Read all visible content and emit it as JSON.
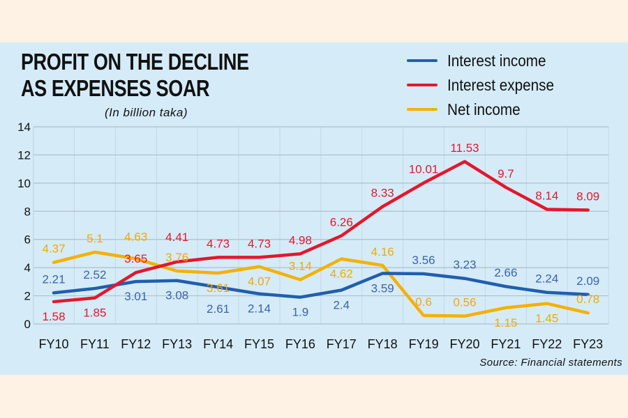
{
  "chart_data": {
    "type": "line",
    "title": "PROFIT ON THE DECLINE\nAS EXPENSES SOAR",
    "subtitle": "(In billion taka)",
    "source": "Source: Financial statements",
    "xlabel": "",
    "ylabel": "",
    "ylim": [
      0,
      14
    ],
    "yticks": [
      0,
      2,
      4,
      6,
      8,
      10,
      12,
      14
    ],
    "grid": true,
    "legend_position": "top-right",
    "categories": [
      "FY10",
      "FY11",
      "FY12",
      "FY13",
      "FY14",
      "FY15",
      "FY16",
      "FY17",
      "FY18",
      "FY19",
      "FY20",
      "FY21",
      "FY22",
      "FY23"
    ],
    "series": [
      {
        "name": "Interest income",
        "color": "#1f5fae",
        "label_color": "#3a62b0",
        "values": [
          2.21,
          2.52,
          3.01,
          3.08,
          2.61,
          2.14,
          1.9,
          2.4,
          3.59,
          3.56,
          3.23,
          2.66,
          2.24,
          2.09
        ]
      },
      {
        "name": "Interest expense",
        "color": "#e3172d",
        "label_color": "#e3172d",
        "values": [
          1.58,
          1.85,
          3.65,
          4.41,
          4.73,
          4.73,
          4.98,
          6.26,
          8.33,
          10.01,
          11.53,
          9.7,
          8.14,
          8.09
        ]
      },
      {
        "name": "Net income",
        "color": "#f5b100",
        "label_color": "#f2a900",
        "values": [
          4.37,
          5.1,
          4.63,
          3.76,
          3.61,
          4.07,
          3.14,
          4.62,
          4.16,
          0.6,
          0.56,
          1.15,
          1.45,
          0.78
        ]
      }
    ]
  }
}
